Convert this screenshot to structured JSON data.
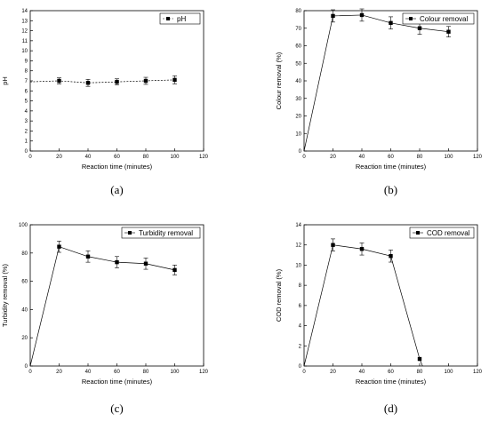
{
  "chart_data": [
    {
      "type": "line",
      "panel_label": "(a)",
      "xlabel": "Reaction time (minutes)",
      "ylabel": "pH",
      "xlim": [
        0,
        120
      ],
      "ylim": [
        0,
        14
      ],
      "xticks": [
        0,
        20,
        40,
        60,
        80,
        100,
        120
      ],
      "yticks": [
        0,
        1,
        2,
        3,
        4,
        5,
        6,
        7,
        8,
        9,
        10,
        11,
        12,
        13,
        14
      ],
      "line_style": "dashed",
      "legend": "pH",
      "legend_position": "top-right",
      "x": [
        0,
        20,
        40,
        60,
        80,
        100
      ],
      "y": [
        6.9,
        7.0,
        6.8,
        6.9,
        7.0,
        7.1
      ],
      "error": [
        0,
        0.3,
        0.35,
        0.3,
        0.35,
        0.4
      ],
      "markers": [
        false,
        true,
        true,
        true,
        true,
        true
      ]
    },
    {
      "type": "line",
      "panel_label": "(b)",
      "xlabel": "Reaction time (minutes)",
      "ylabel": "Colour removal (%)",
      "xlim": [
        0,
        120
      ],
      "ylim": [
        0,
        80
      ],
      "xticks": [
        0,
        20,
        40,
        60,
        80,
        100,
        120
      ],
      "yticks": [
        0,
        10,
        20,
        30,
        40,
        50,
        60,
        70,
        80
      ],
      "line_style": "solid",
      "legend": "Colour removal",
      "legend_position": "top-right",
      "x": [
        0,
        20,
        40,
        60,
        80,
        100
      ],
      "y": [
        0,
        77,
        77.5,
        73,
        70,
        68
      ],
      "error": [
        0,
        3.5,
        3.5,
        3.5,
        3.5,
        3.0
      ],
      "markers": [
        false,
        true,
        true,
        true,
        true,
        true
      ]
    },
    {
      "type": "line",
      "panel_label": "(c)",
      "xlabel": "Reaction time (minutes)",
      "ylabel": "Turbidity removal (%)",
      "xlim": [
        0,
        120
      ],
      "ylim": [
        0,
        100
      ],
      "xticks": [
        0,
        20,
        40,
        60,
        80,
        100,
        120
      ],
      "yticks": [
        0,
        20,
        40,
        60,
        80,
        100
      ],
      "line_style": "solid",
      "legend": "Turbidity removal",
      "legend_position": "top-right",
      "x": [
        0,
        20,
        40,
        60,
        80,
        100
      ],
      "y": [
        0,
        84.5,
        77.5,
        73.5,
        72.5,
        68
      ],
      "error": [
        0,
        4,
        4,
        4,
        4,
        3.5
      ],
      "markers": [
        false,
        true,
        true,
        true,
        true,
        true
      ]
    },
    {
      "type": "line",
      "panel_label": "(d)",
      "xlabel": "Reaction time (minutes)",
      "ylabel": "COD removal (%)",
      "xlim": [
        0,
        120
      ],
      "ylim": [
        0,
        14
      ],
      "xticks": [
        0,
        20,
        40,
        60,
        80,
        100,
        120
      ],
      "yticks": [
        0,
        2,
        4,
        6,
        8,
        10,
        12,
        14
      ],
      "line_style": "solid",
      "legend": "COD removal",
      "legend_position": "top-right",
      "x": [
        0,
        20,
        40,
        60,
        80,
        82
      ],
      "y": [
        0,
        12.0,
        11.6,
        10.9,
        0.7,
        0
      ],
      "error": [
        0,
        0.6,
        0.6,
        0.6,
        0,
        0
      ],
      "markers": [
        false,
        true,
        true,
        true,
        true,
        false
      ]
    }
  ]
}
